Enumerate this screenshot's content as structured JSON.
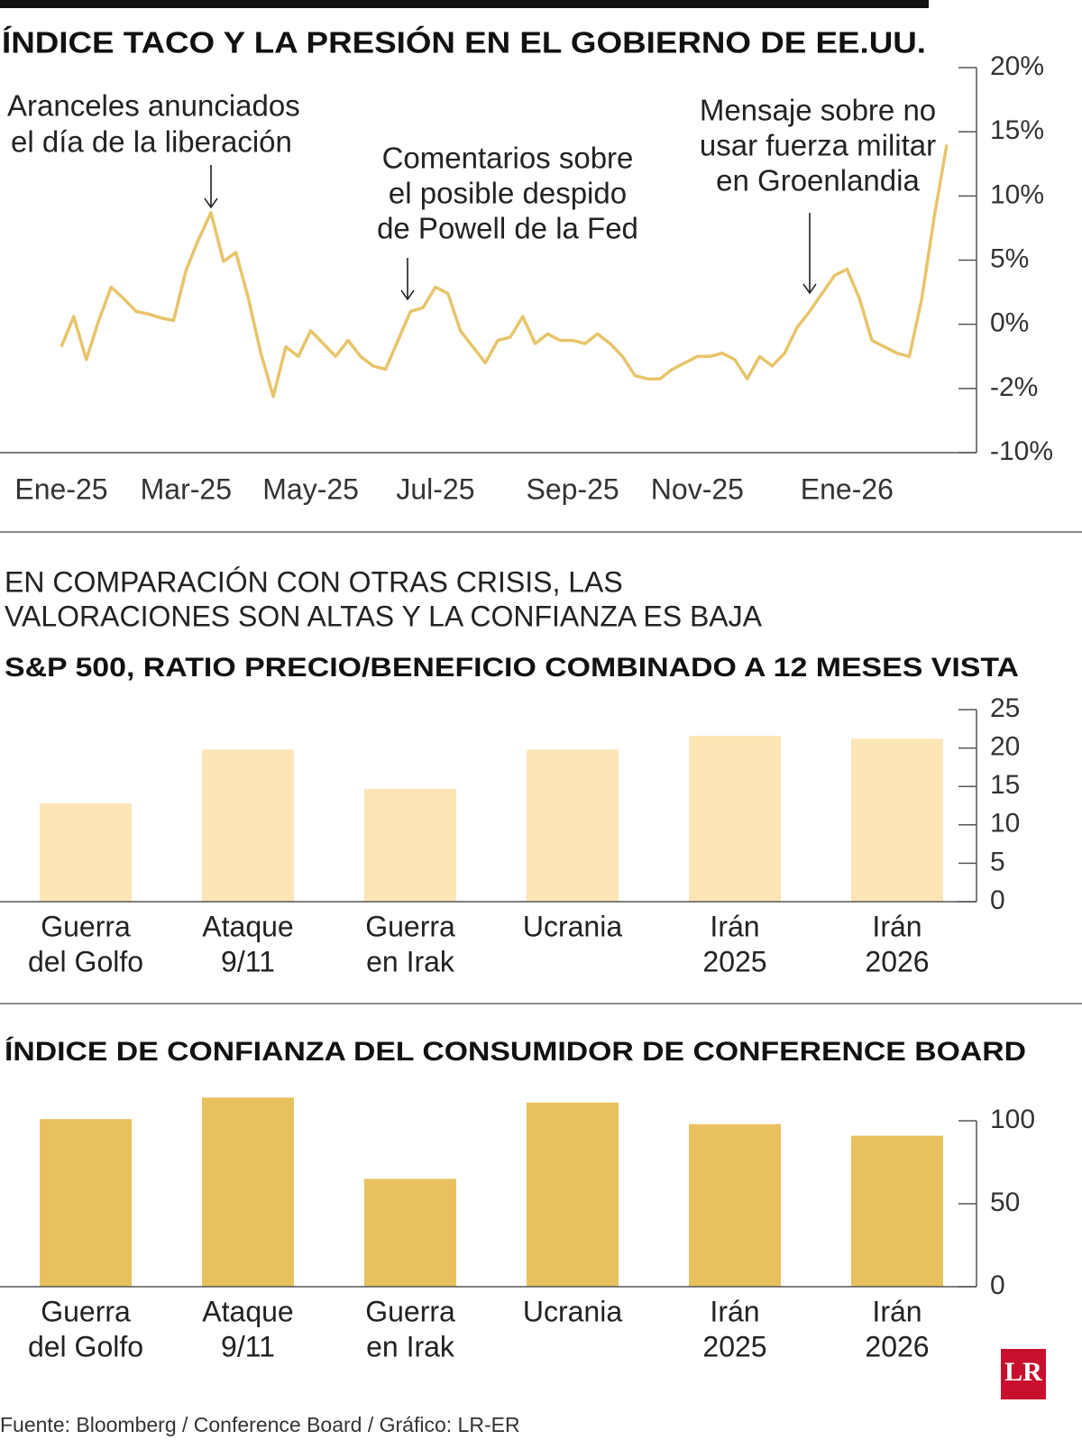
{
  "title": "ÍNDICE TACO Y LA PRESIÓN EN EL GOBIERNO DE EE.UU.",
  "chart_data": [
    {
      "type": "line",
      "color": "#e8c46a",
      "annotations": [
        {
          "lines": [
            "Aranceles anunciados",
            "el día de la liberación"
          ]
        },
        {
          "lines": [
            "Comentarios sobre",
            "el posible despido",
            "de Powell de la Fed"
          ]
        },
        {
          "lines": [
            "Mensaje sobre no",
            "usar fuerza militar",
            "en Groenlandia"
          ]
        }
      ],
      "x": [
        0,
        1,
        2,
        3,
        4,
        5,
        6,
        7,
        8,
        9,
        10,
        11,
        12,
        13,
        14,
        15,
        16,
        17,
        18,
        19,
        20,
        21,
        22,
        23,
        24,
        25,
        26,
        27,
        28,
        29,
        30,
        31,
        32,
        33,
        34,
        35,
        36,
        37,
        38,
        39,
        40,
        41,
        42,
        43,
        44,
        45,
        46,
        47,
        48,
        49,
        50,
        51,
        52,
        53,
        54,
        55,
        56,
        57,
        58,
        59,
        60,
        61,
        62,
        63,
        64,
        65,
        66,
        67,
        68,
        69,
        70,
        71
      ],
      "values": [
        -0.7,
        0.6,
        -1.1,
        0.3,
        2.9,
        2.0,
        1.0,
        0.8,
        0.5,
        0.3,
        4.2,
        6.6,
        8.7,
        4.9,
        5.6,
        2.0,
        -0.9,
        -3.0,
        -0.7,
        -1.0,
        -0.2,
        -0.6,
        -1.0,
        -0.5,
        -1.0,
        -1.3,
        -1.4,
        -0.5,
        1.0,
        1.3,
        2.9,
        2.4,
        -0.2,
        -0.7,
        -1.2,
        -0.5,
        -0.4,
        0.6,
        -0.6,
        -0.3,
        -0.5,
        -0.5,
        -0.6,
        -0.3,
        -0.6,
        -1.0,
        -1.6,
        -1.7,
        -1.7,
        -1.4,
        -1.2,
        -1.0,
        -1.0,
        -0.9,
        -1.1,
        -1.7,
        -1.0,
        -1.3,
        -0.9,
        -0.1,
        1.0,
        2.4,
        3.8,
        4.3,
        2.0,
        -0.5,
        -0.7,
        -0.9,
        -1.0,
        2.0,
        8.4,
        14.0
      ],
      "xlim": [
        0,
        71
      ],
      "xticks": [
        {
          "value": 0,
          "label": "Ene-25"
        },
        {
          "value": 10,
          "label": "Mar-25"
        },
        {
          "value": 20,
          "label": "May-25"
        },
        {
          "value": 30,
          "label": "Jul-25"
        },
        {
          "value": 41,
          "label": "Sep-25"
        },
        {
          "value": 51,
          "label": "Nov-25"
        },
        {
          "value": 63,
          "label": "Ene-26"
        }
      ],
      "ylim": [
        -10,
        20
      ],
      "yticks": [
        {
          "value": 20,
          "label": "20%"
        },
        {
          "value": 15,
          "label": "15%"
        },
        {
          "value": 10,
          "label": "10%"
        },
        {
          "value": 5,
          "label": "5%"
        },
        {
          "value": 0,
          "label": "0%"
        },
        {
          "value": -2,
          "label": "-2%"
        },
        {
          "value": -10,
          "label": "-10%"
        }
      ]
    },
    {
      "type": "bar",
      "title": "S&P 500, RATIO PRECIO/BENEFICIO COMBINADO A 12 MESES VISTA",
      "color": "#fde6b6",
      "categories": [
        [
          "Guerra",
          "del Golfo"
        ],
        [
          "Ataque",
          "9/11"
        ],
        [
          "Guerra",
          "en Irak"
        ],
        [
          "Ucrania"
        ],
        [
          "Irán",
          "2025"
        ],
        [
          "Irán",
          "2026"
        ]
      ],
      "values": [
        12.8,
        19.8,
        14.7,
        19.8,
        21.6,
        21.2
      ],
      "ylim": [
        0,
        25
      ],
      "yticks": [
        0,
        5,
        10,
        15,
        20,
        25
      ]
    },
    {
      "type": "bar",
      "title": "ÍNDICE DE CONFIANZA DEL CONSUMIDOR DE CONFERENCE BOARD",
      "color": "#e8c15e",
      "categories": [
        [
          "Guerra",
          "del Golfo"
        ],
        [
          "Ataque",
          "9/11"
        ],
        [
          "Guerra",
          "en Irak"
        ],
        [
          "Ucrania"
        ],
        [
          "Irán",
          "2025"
        ],
        [
          "Irán",
          "2026"
        ]
      ],
      "values": [
        101,
        114,
        65,
        111,
        98,
        91
      ],
      "ylim": [
        0,
        100
      ],
      "yticks": [
        0,
        50,
        100
      ]
    }
  ],
  "subtitle": [
    "EN COMPARACIÓN CON OTRAS CRISIS, LAS",
    "VALORACIONES SON ALTAS Y LA CONFIANZA ES BAJA"
  ],
  "source": "Fuente: Bloomberg / Conference Board / Gráfico: LR-ER",
  "logo": "LR"
}
